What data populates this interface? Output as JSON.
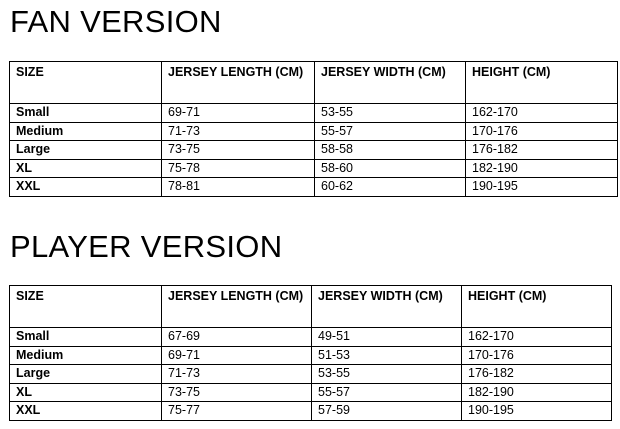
{
  "fan": {
    "title": "FAN VERSION",
    "headers": [
      "SIZE",
      "JERSEY LENGTH (CM)",
      "JERSEY WIDTH (CM)",
      "HEIGHT (CM)"
    ],
    "rows": [
      [
        "Small",
        "69-71",
        "53-55",
        "162-170"
      ],
      [
        "Medium",
        "71-73",
        "55-57",
        "170-176"
      ],
      [
        "Large",
        "73-75",
        "58-58",
        "176-182"
      ],
      [
        "XL",
        "75-78",
        "58-60",
        "182-190"
      ],
      [
        "XXL",
        "78-81",
        "60-62",
        "190-195"
      ]
    ]
  },
  "player": {
    "title": "PLAYER VERSION",
    "headers": [
      "SIZE",
      "JERSEY LENGTH (CM)",
      "JERSEY WIDTH (CM)",
      "HEIGHT (CM)"
    ],
    "rows": [
      [
        "Small",
        "67-69",
        "49-51",
        "162-170"
      ],
      [
        "Medium",
        "69-71",
        "51-53",
        "170-176"
      ],
      [
        "Large",
        "71-73",
        "53-55",
        "176-182"
      ],
      [
        "XL",
        "73-75",
        "55-57",
        "182-190"
      ],
      [
        "XXL",
        "75-77",
        "57-59",
        "190-195"
      ]
    ]
  }
}
